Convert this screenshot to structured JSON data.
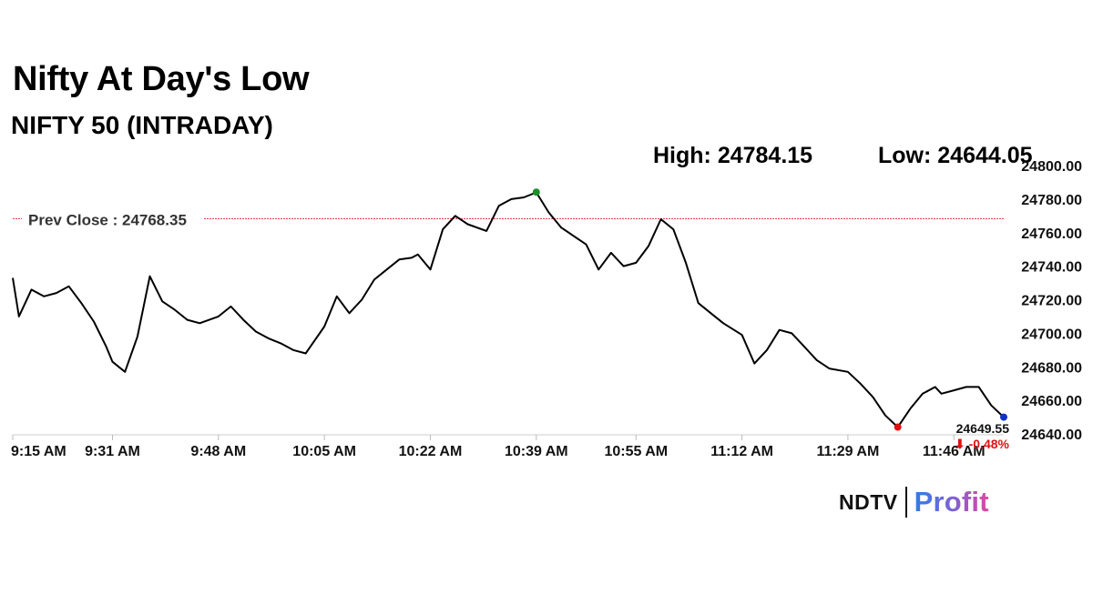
{
  "headline": "Nifty At Day's Low",
  "subtitle": "NIFTY 50 (INTRADAY)",
  "high_label": "High: 24784.15",
  "low_label": "Low: 24644.05",
  "prev_close_label": "Prev Close : 24768.35",
  "last_price": "24649.55",
  "change_label": "⬇ -0.48%",
  "logo": {
    "ndtv": "NDTV",
    "profit": "Profit"
  },
  "colors": {
    "line": "#000000",
    "prev_close_line": "#e03030",
    "high_marker": "#1a8f2a",
    "low_marker": "#e01010",
    "last_marker": "#1030c8",
    "negative": "#e01010"
  },
  "chart_data": {
    "type": "line",
    "title": "NIFTY 50 (INTRADAY)",
    "x_ticks": [
      "9:15 AM",
      "9:31 AM",
      "9:48 AM",
      "10:05 AM",
      "10:22 AM",
      "10:39 AM",
      "10:55 AM",
      "11:12 AM",
      "11:29 AM",
      "11:46 AM"
    ],
    "y_ticks": [
      24640.0,
      24660.0,
      24680.0,
      24700.0,
      24720.0,
      24740.0,
      24760.0,
      24780.0,
      24800.0
    ],
    "ylim": [
      24640,
      24800
    ],
    "y_axis_position": "right",
    "grid": false,
    "prev_close": 24768.35,
    "high": 24784.15,
    "low": 24644.05,
    "last": 24649.55,
    "change_pct": -0.48,
    "series": [
      {
        "x": [
          "9:15",
          "9:16",
          "9:18",
          "9:20",
          "9:22",
          "9:24",
          "9:26",
          "9:28",
          "9:30",
          "9:31",
          "9:33",
          "9:35",
          "9:37",
          "9:39",
          "9:41",
          "9:43",
          "9:45",
          "9:48",
          "9:50",
          "9:52",
          "9:54",
          "9:56",
          "9:58",
          "10:00",
          "10:02",
          "10:05",
          "10:07",
          "10:09",
          "10:11",
          "10:13",
          "10:15",
          "10:17",
          "10:19",
          "10:20",
          "10:22",
          "10:24",
          "10:26",
          "10:28",
          "10:31",
          "10:33",
          "10:35",
          "10:37",
          "10:39",
          "10:41",
          "10:43",
          "10:45",
          "10:47",
          "10:49",
          "10:51",
          "10:53",
          "10:55",
          "10:57",
          "10:59",
          "11:01",
          "11:03",
          "11:05",
          "11:07",
          "11:09",
          "11:12",
          "11:14",
          "11:16",
          "11:18",
          "11:20",
          "11:22",
          "11:24",
          "11:26",
          "11:29",
          "11:31",
          "11:33",
          "11:35",
          "11:37",
          "11:39",
          "11:41",
          "11:43",
          "11:44",
          "11:46",
          "11:48",
          "11:50",
          "11:52",
          "11:54"
        ],
        "values": [
          24733,
          24710,
          24726,
          24722,
          24724,
          24728,
          24718,
          24707,
          24692,
          24683,
          24677,
          24698,
          24734,
          24719,
          24714,
          24708,
          24706,
          24710,
          24716,
          24708,
          24701,
          24697,
          24694,
          24690,
          24688,
          24704,
          24722,
          24712,
          24720,
          24732,
          24738,
          24744,
          24745,
          24747,
          24738,
          24762,
          24770,
          24765,
          24761,
          24776,
          24780,
          24781,
          24784,
          24772,
          24763,
          24758,
          24753,
          24738,
          24748,
          24740,
          24742,
          24752,
          24768,
          24762,
          24742,
          24718,
          24712,
          24706,
          24699,
          24682,
          24690,
          24702,
          24700,
          24692,
          24684,
          24679,
          24677,
          24670,
          24662,
          24651,
          24644,
          24655,
          24664,
          24668,
          24664,
          24666,
          24668,
          24668,
          24657,
          24650
        ]
      }
    ]
  }
}
